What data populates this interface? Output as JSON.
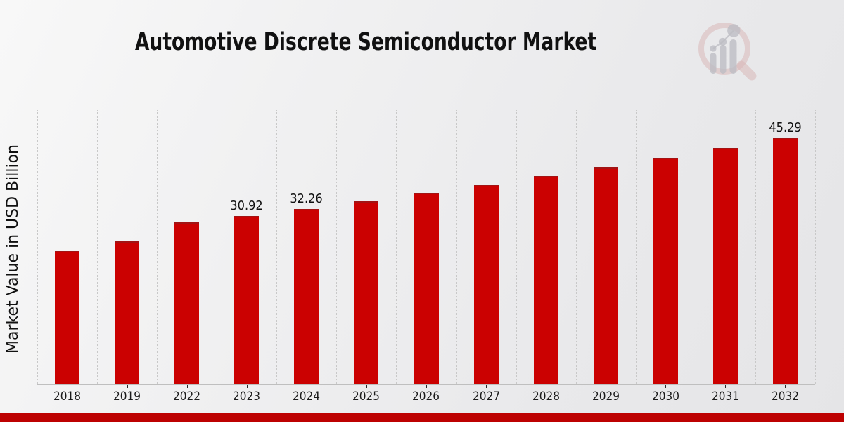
{
  "page": {
    "title": "Automotive Discrete Semiconductor Market",
    "ylabel": "Market Value in USD Billion"
  },
  "colors": {
    "bar": "#cb0101",
    "bar_top_edge": "#a31414",
    "bottom_band": "#bd0101",
    "text": "#1a1a1a",
    "grid": "#c8c8c8",
    "axis_line": "#bfbfbf",
    "tick": "#2a2a2a",
    "logo_pink": "#d9b8b8",
    "logo_gray": "#bcbcc3"
  },
  "chart_data": {
    "type": "bar",
    "title": "Automotive Discrete Semiconductor Market",
    "xlabel": "",
    "ylabel": "Market Value in USD Billion",
    "unit": "USD Billion",
    "categories": [
      "2018",
      "2019",
      "2022",
      "2023",
      "2024",
      "2025",
      "2026",
      "2027",
      "2028",
      "2029",
      "2030",
      "2031",
      "2032"
    ],
    "values": [
      24.5,
      26.3,
      29.7,
      30.92,
      32.26,
      33.66,
      35.12,
      36.64,
      38.23,
      39.89,
      41.62,
      43.43,
      45.29
    ],
    "bar_labels": [
      "",
      "",
      "",
      "30.92",
      "32.26",
      "",
      "",
      "",
      "",
      "",
      "",
      "",
      "45.29"
    ],
    "value_labels_shown_for": [
      "2023",
      "2024",
      "2032"
    ],
    "ylim": [
      0,
      50.3
    ],
    "grid": "vertical-dotted",
    "legend": false
  }
}
